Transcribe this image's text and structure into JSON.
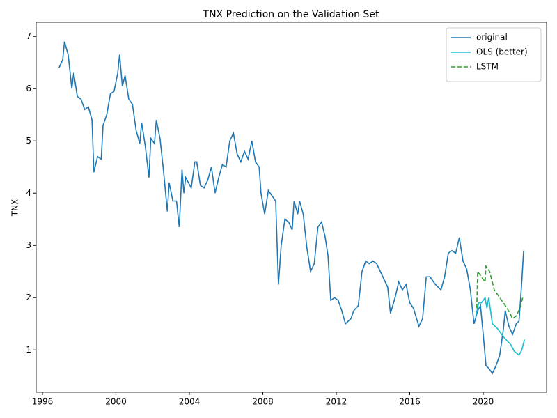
{
  "chart_data": {
    "type": "line",
    "title": "TNX Prediction on the Validation Set",
    "ylabel": "TNX",
    "xlim": [
      1995.66,
      2023.45
    ],
    "ylim": [
      0.19,
      7.27
    ],
    "xticks": [
      1996,
      2000,
      2004,
      2008,
      2012,
      2016,
      2020
    ],
    "yticks": [
      1,
      2,
      3,
      4,
      5,
      6,
      7
    ],
    "grid": false,
    "legend": "upper right",
    "series": [
      {
        "name": "original",
        "color": "#1f77b4",
        "dash": "solid",
        "x": [
          1996.9,
          1997.1,
          1997.2,
          1997.4,
          1997.6,
          1997.7,
          1997.9,
          1998.1,
          1998.3,
          1998.5,
          1998.7,
          1998.8,
          1999.0,
          1999.2,
          1999.3,
          1999.5,
          1999.7,
          1999.9,
          2000.1,
          2000.2,
          2000.35,
          2000.5,
          2000.7,
          2000.9,
          2001.1,
          2001.3,
          2001.4,
          2001.6,
          2001.8,
          2001.9,
          2002.1,
          2002.2,
          2002.4,
          2002.6,
          2002.8,
          2002.9,
          2003.1,
          2003.3,
          2003.45,
          2003.6,
          2003.7,
          2003.8,
          2004.1,
          2004.3,
          2004.4,
          2004.6,
          2004.8,
          2005.0,
          2005.2,
          2005.4,
          2005.6,
          2005.8,
          2006.0,
          2006.2,
          2006.4,
          2006.6,
          2006.8,
          2007.0,
          2007.2,
          2007.4,
          2007.6,
          2007.8,
          2007.9,
          2008.1,
          2008.3,
          2008.5,
          2008.7,
          2008.85,
          2009.0,
          2009.2,
          2009.4,
          2009.6,
          2009.7,
          2009.9,
          2010.0,
          2010.2,
          2010.4,
          2010.6,
          2010.8,
          2011.0,
          2011.2,
          2011.4,
          2011.55,
          2011.7,
          2011.9,
          2012.1,
          2012.3,
          2012.5,
          2012.8,
          2012.95,
          2013.2,
          2013.4,
          2013.6,
          2013.8,
          2014.0,
          2014.2,
          2014.4,
          2014.6,
          2014.8,
          2014.95,
          2015.2,
          2015.4,
          2015.6,
          2015.8,
          2016.0,
          2016.2,
          2016.5,
          2016.7,
          2016.9,
          2017.1,
          2017.4,
          2017.7,
          2017.9,
          2018.1,
          2018.3,
          2018.5,
          2018.7,
          2018.9,
          2019.1,
          2019.3,
          2019.5,
          2019.7,
          2019.85,
          2020.0,
          2020.15,
          2020.3,
          2020.5,
          2020.7,
          2020.9,
          2021.1,
          2021.2,
          2021.4,
          2021.6,
          2021.8,
          2021.95,
          2022.1,
          2022.2
        ],
        "values": [
          6.4,
          6.55,
          6.9,
          6.65,
          6.0,
          6.3,
          5.85,
          5.8,
          5.6,
          5.65,
          5.4,
          4.4,
          4.7,
          4.65,
          5.3,
          5.5,
          5.9,
          5.95,
          6.3,
          6.65,
          6.05,
          6.25,
          5.8,
          5.7,
          5.2,
          4.95,
          5.35,
          4.9,
          4.3,
          5.05,
          4.95,
          5.4,
          5.05,
          4.4,
          3.65,
          4.2,
          3.85,
          3.85,
          3.35,
          4.45,
          4.0,
          4.3,
          4.1,
          4.6,
          4.6,
          4.15,
          4.1,
          4.25,
          4.5,
          4.0,
          4.3,
          4.55,
          4.5,
          5.0,
          5.15,
          4.75,
          4.6,
          4.8,
          4.65,
          5.0,
          4.6,
          4.5,
          4.0,
          3.6,
          4.05,
          3.95,
          3.85,
          2.25,
          3.0,
          3.5,
          3.45,
          3.3,
          3.85,
          3.6,
          3.85,
          3.6,
          2.95,
          2.5,
          2.65,
          3.35,
          3.45,
          3.15,
          2.8,
          1.95,
          2.0,
          1.95,
          1.75,
          1.5,
          1.6,
          1.75,
          1.85,
          2.5,
          2.7,
          2.65,
          2.7,
          2.65,
          2.5,
          2.35,
          2.2,
          1.7,
          2.0,
          2.3,
          2.15,
          2.25,
          1.9,
          1.8,
          1.45,
          1.6,
          2.4,
          2.4,
          2.25,
          2.15,
          2.4,
          2.85,
          2.9,
          2.85,
          3.15,
          2.7,
          2.55,
          2.15,
          1.5,
          1.75,
          1.85,
          1.3,
          0.7,
          0.65,
          0.55,
          0.7,
          0.9,
          1.4,
          1.75,
          1.45,
          1.3,
          1.5,
          1.55,
          2.3,
          2.9
        ]
      },
      {
        "name": "OLS (better)",
        "color": "#17becf",
        "dash": "solid",
        "x": [
          2019.6,
          2019.75,
          2019.9,
          2020.1,
          2020.2,
          2020.3,
          2020.5,
          2020.8,
          2021.1,
          2021.5,
          2021.7,
          2021.95,
          2022.1,
          2022.25
        ],
        "values": [
          1.65,
          1.9,
          1.9,
          2.0,
          1.8,
          2.0,
          1.5,
          1.4,
          1.25,
          1.1,
          0.97,
          0.9,
          1.0,
          1.2
        ]
      },
      {
        "name": "LSTM",
        "color": "#2ca02c",
        "dash": "dashed",
        "x": [
          2019.65,
          2019.7,
          2019.9,
          2020.1,
          2020.15,
          2020.35,
          2020.6,
          2021.0,
          2021.3,
          2021.6,
          2021.8,
          2022.0,
          2022.15
        ],
        "values": [
          1.8,
          2.5,
          2.4,
          2.3,
          2.6,
          2.5,
          2.15,
          1.95,
          1.8,
          1.6,
          1.65,
          1.8,
          2.0
        ]
      }
    ]
  }
}
